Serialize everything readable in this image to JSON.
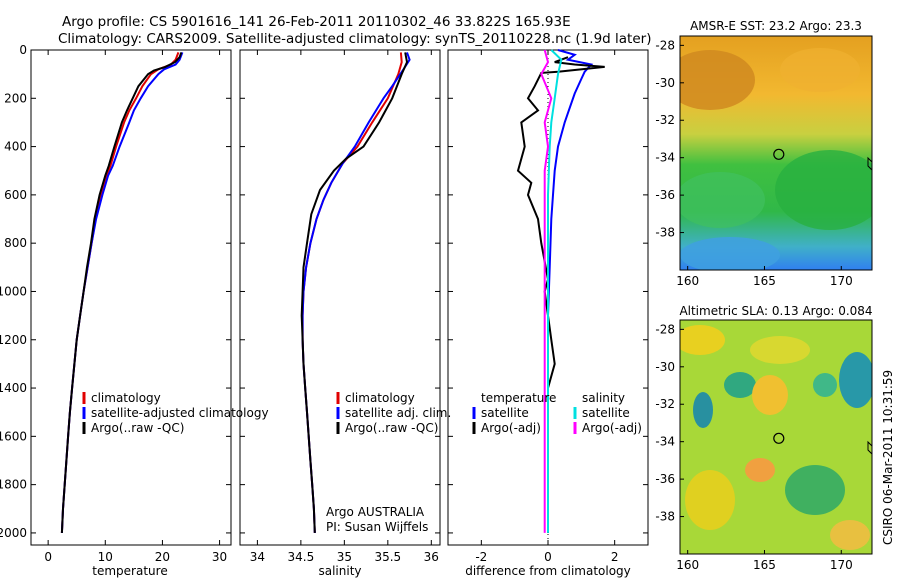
{
  "header": {
    "line1": "Argo profile: CS 5901616_141 26-Feb-2011 20110302_46 33.822S 165.93E",
    "line2": "Climatology: CARS2009. Satellite-adjusted climatology: synTS_20110228.nc (1.9d later)"
  },
  "side_stamp": "CSIRO 06-Mar-2011 10:31:59",
  "chart_data": [
    {
      "type": "line",
      "xlabel": "temperature",
      "ylabel": "",
      "xlim": [
        -3,
        32
      ],
      "ylim": [
        2050,
        0
      ],
      "y_reversed": true,
      "x_ticks": [
        0,
        10,
        20,
        30
      ],
      "y_ticks": [
        0,
        200,
        400,
        600,
        800,
        1000,
        1200,
        1400,
        1600,
        1800,
        2000
      ],
      "legend": [
        "climatology",
        "satellite-adjusted climatology",
        "Argo(..raw -QC)"
      ],
      "series": [
        {
          "name": "climatology",
          "color": "#e00000",
          "points": [
            [
              22.8,
              10
            ],
            [
              22.3,
              40
            ],
            [
              21.5,
              60
            ],
            [
              19.3,
              80
            ],
            [
              18.0,
              100
            ],
            [
              16.5,
              150
            ],
            [
              15.4,
              200
            ],
            [
              14.2,
              250
            ],
            [
              13.3,
              300
            ],
            [
              11.9,
              400
            ],
            [
              10.9,
              480
            ],
            [
              10.2,
              520
            ],
            [
              9.3,
              600
            ],
            [
              8.3,
              700
            ],
            [
              7.6,
              800
            ],
            [
              6.9,
              900
            ],
            [
              6.2,
              1000
            ],
            [
              5.6,
              1100
            ],
            [
              5.0,
              1200
            ],
            [
              4.6,
              1300
            ],
            [
              4.2,
              1400
            ],
            [
              3.8,
              1500
            ],
            [
              3.5,
              1600
            ],
            [
              3.2,
              1700
            ],
            [
              2.9,
              1800
            ],
            [
              2.6,
              1900
            ],
            [
              2.4,
              2000
            ]
          ]
        },
        {
          "name": "satellite-adjusted climatology",
          "color": "#0000ff",
          "points": [
            [
              23.5,
              10
            ],
            [
              23.0,
              40
            ],
            [
              22.3,
              60
            ],
            [
              20.3,
              80
            ],
            [
              19.3,
              100
            ],
            [
              17.5,
              150
            ],
            [
              16.2,
              200
            ],
            [
              15.0,
              250
            ],
            [
              14.2,
              300
            ],
            [
              12.5,
              400
            ],
            [
              11.3,
              480
            ],
            [
              10.5,
              520
            ],
            [
              9.5,
              600
            ],
            [
              8.4,
              700
            ],
            [
              7.6,
              800
            ],
            [
              6.9,
              900
            ],
            [
              6.2,
              1000
            ],
            [
              5.6,
              1100
            ],
            [
              5.0,
              1200
            ],
            [
              4.6,
              1300
            ],
            [
              4.2,
              1400
            ],
            [
              3.8,
              1500
            ],
            [
              3.5,
              1600
            ],
            [
              3.2,
              1700
            ],
            [
              2.9,
              1800
            ],
            [
              2.6,
              1900
            ],
            [
              2.4,
              2000
            ]
          ]
        },
        {
          "name": "Argo(..raw -QC)",
          "color": "#000000",
          "points": [
            [
              23.3,
              10
            ],
            [
              23.0,
              30
            ],
            [
              22.2,
              50
            ],
            [
              20.5,
              70
            ],
            [
              18.5,
              85
            ],
            [
              17.5,
              100
            ],
            [
              15.8,
              150
            ],
            [
              14.8,
              200
            ],
            [
              13.8,
              250
            ],
            [
              12.9,
              300
            ],
            [
              11.6,
              400
            ],
            [
              10.6,
              480
            ],
            [
              10.0,
              520
            ],
            [
              9.0,
              600
            ],
            [
              8.1,
              700
            ],
            [
              7.5,
              800
            ],
            [
              6.8,
              900
            ],
            [
              6.2,
              1000
            ],
            [
              5.6,
              1100
            ],
            [
              5.0,
              1200
            ],
            [
              4.6,
              1300
            ],
            [
              4.2,
              1400
            ],
            [
              3.8,
              1500
            ],
            [
              3.5,
              1600
            ],
            [
              3.2,
              1700
            ],
            [
              2.9,
              1800
            ],
            [
              2.6,
              1900
            ],
            [
              2.4,
              2000
            ]
          ]
        }
      ]
    },
    {
      "type": "line",
      "xlabel": "salinity",
      "ylabel": "",
      "xlim": [
        33.8,
        36.1
      ],
      "ylim": [
        2050,
        0
      ],
      "y_reversed": true,
      "x_ticks": [
        34,
        34.5,
        35,
        35.5,
        36
      ],
      "legend": [
        "climatology",
        "satellite adj. clim.",
        "Argo(..raw -QC)"
      ],
      "annotations": [
        "Argo AUSTRALIA",
        "PI: Susan Wijffels"
      ],
      "series": [
        {
          "name": "climatology",
          "color": "#e00000",
          "points": [
            [
              35.65,
              10
            ],
            [
              35.66,
              50
            ],
            [
              35.62,
              100
            ],
            [
              35.5,
              200
            ],
            [
              35.32,
              300
            ],
            [
              35.15,
              400
            ],
            [
              34.98,
              470
            ],
            [
              34.85,
              550
            ],
            [
              34.76,
              620
            ],
            [
              34.68,
              700
            ],
            [
              34.61,
              800
            ],
            [
              34.56,
              900
            ],
            [
              34.53,
              1000
            ],
            [
              34.52,
              1100
            ],
            [
              34.52,
              1200
            ],
            [
              34.53,
              1300
            ],
            [
              34.55,
              1400
            ],
            [
              34.57,
              1500
            ],
            [
              34.59,
              1600
            ],
            [
              34.61,
              1700
            ],
            [
              34.63,
              1800
            ],
            [
              34.65,
              1900
            ],
            [
              34.66,
              2000
            ]
          ]
        },
        {
          "name": "satellite adj. clim.",
          "color": "#0000ff",
          "points": [
            [
              35.72,
              10
            ],
            [
              35.75,
              40
            ],
            [
              35.68,
              80
            ],
            [
              35.55,
              150
            ],
            [
              35.45,
              200
            ],
            [
              35.28,
              300
            ],
            [
              35.12,
              400
            ],
            [
              34.98,
              470
            ],
            [
              34.85,
              550
            ],
            [
              34.76,
              620
            ],
            [
              34.68,
              700
            ],
            [
              34.61,
              800
            ],
            [
              34.56,
              900
            ],
            [
              34.53,
              1000
            ],
            [
              34.52,
              1100
            ],
            [
              34.52,
              1200
            ],
            [
              34.53,
              1300
            ],
            [
              34.55,
              1400
            ],
            [
              34.57,
              1500
            ],
            [
              34.59,
              1600
            ],
            [
              34.61,
              1700
            ],
            [
              34.63,
              1800
            ],
            [
              34.65,
              1900
            ],
            [
              34.66,
              2000
            ]
          ]
        },
        {
          "name": "Argo(..raw -QC)",
          "color": "#000000",
          "points": [
            [
              35.7,
              10
            ],
            [
              35.72,
              50
            ],
            [
              35.66,
              100
            ],
            [
              35.55,
              200
            ],
            [
              35.4,
              300
            ],
            [
              35.22,
              400
            ],
            [
              35.02,
              450
            ],
            [
              34.88,
              500
            ],
            [
              34.72,
              580
            ],
            [
              34.62,
              680
            ],
            [
              34.57,
              800
            ],
            [
              34.53,
              900
            ],
            [
              34.52,
              1000
            ],
            [
              34.51,
              1100
            ],
            [
              34.52,
              1200
            ],
            [
              34.53,
              1300
            ],
            [
              34.55,
              1400
            ],
            [
              34.57,
              1500
            ],
            [
              34.59,
              1600
            ],
            [
              34.61,
              1700
            ],
            [
              34.63,
              1800
            ],
            [
              34.65,
              1900
            ],
            [
              34.66,
              2000
            ]
          ]
        }
      ]
    },
    {
      "type": "line",
      "xlabel": "difference from climatology",
      "ylabel": "",
      "xlim": [
        -3,
        3
      ],
      "ylim": [
        2050,
        0
      ],
      "y_reversed": true,
      "x_ticks": [
        -2,
        0,
        2
      ],
      "legend_groups": [
        {
          "title": "temperature",
          "entries": [
            "satellite",
            "Argo(-adj)"
          ]
        },
        {
          "title": "salinity",
          "entries": [
            "satellite",
            "Argo(-adj)"
          ]
        }
      ],
      "series": [
        {
          "name": "temperature satellite",
          "color": "#0000ff",
          "points": [
            [
              0.3,
              0
            ],
            [
              0.8,
              20
            ],
            [
              0.6,
              40
            ],
            [
              1.3,
              60
            ],
            [
              1.1,
              90
            ],
            [
              1.0,
              120
            ],
            [
              0.8,
              180
            ],
            [
              0.6,
              260
            ],
            [
              0.5,
              300
            ],
            [
              0.3,
              400
            ],
            [
              0.2,
              500
            ],
            [
              0.1,
              700
            ],
            [
              0.05,
              900
            ],
            [
              0.0,
              1100
            ],
            [
              0.0,
              1500
            ],
            [
              0.0,
              2000
            ]
          ]
        },
        {
          "name": "temperature Argo(-adj)",
          "color": "#000000",
          "points": [
            [
              0.6,
              30
            ],
            [
              0.2,
              50
            ],
            [
              0.8,
              60
            ],
            [
              1.7,
              70
            ],
            [
              0.3,
              90
            ],
            [
              -0.2,
              95
            ],
            [
              -0.4,
              150
            ],
            [
              -0.6,
              200
            ],
            [
              -0.3,
              250
            ],
            [
              -0.8,
              300
            ],
            [
              -0.7,
              400
            ],
            [
              -0.9,
              500
            ],
            [
              -0.5,
              550
            ],
            [
              -0.6,
              600
            ],
            [
              -0.3,
              700
            ],
            [
              -0.2,
              800
            ],
            [
              0.0,
              950
            ],
            [
              -0.1,
              1000
            ],
            [
              0.0,
              1100
            ],
            [
              0.1,
              1200
            ],
            [
              0.2,
              1300
            ],
            [
              0.0,
              1400
            ],
            [
              0.0,
              1500
            ],
            [
              0.0,
              1700
            ],
            [
              0.0,
              2000
            ]
          ]
        },
        {
          "name": "salinity satellite",
          "color": "#00e0e0",
          "points": [
            [
              0.1,
              0
            ],
            [
              0.4,
              40
            ],
            [
              0.3,
              100
            ],
            [
              0.2,
              200
            ],
            [
              0.1,
              300
            ],
            [
              0.05,
              400
            ],
            [
              0.0,
              600
            ],
            [
              0.0,
              1000
            ],
            [
              0.0,
              2000
            ]
          ]
        },
        {
          "name": "salinity Argo(-adj)",
          "color": "#ff00ff",
          "points": [
            [
              -0.1,
              0
            ],
            [
              0.0,
              50
            ],
            [
              -0.2,
              100
            ],
            [
              0.1,
              200
            ],
            [
              -0.1,
              300
            ],
            [
              0.0,
              400
            ],
            [
              -0.1,
              500
            ],
            [
              -0.1,
              700
            ],
            [
              -0.1,
              1000
            ],
            [
              -0.1,
              1300
            ],
            [
              -0.1,
              1500
            ],
            [
              -0.1,
              2000
            ]
          ]
        }
      ]
    },
    {
      "type": "heatmap",
      "title": "AMSR-E SST: 23.2 Argo: 23.3",
      "xlim": [
        159.5,
        172
      ],
      "ylim": [
        -40,
        -27.5
      ],
      "x_ticks": [
        160,
        165,
        170
      ],
      "y_ticks": [
        -28,
        -30,
        -32,
        -34,
        -36,
        -38
      ],
      "marker": {
        "lon": 165.93,
        "lat": -33.822
      }
    },
    {
      "type": "heatmap",
      "title": "Altimetric SLA: 0.13 Argo: 0.084",
      "xlim": [
        159.5,
        172
      ],
      "ylim": [
        -40,
        -27.5
      ],
      "x_ticks": [
        160,
        165,
        170
      ],
      "y_ticks": [
        -28,
        -30,
        -32,
        -34,
        -36,
        -38
      ],
      "marker": {
        "lon": 165.93,
        "lat": -33.822
      }
    }
  ]
}
